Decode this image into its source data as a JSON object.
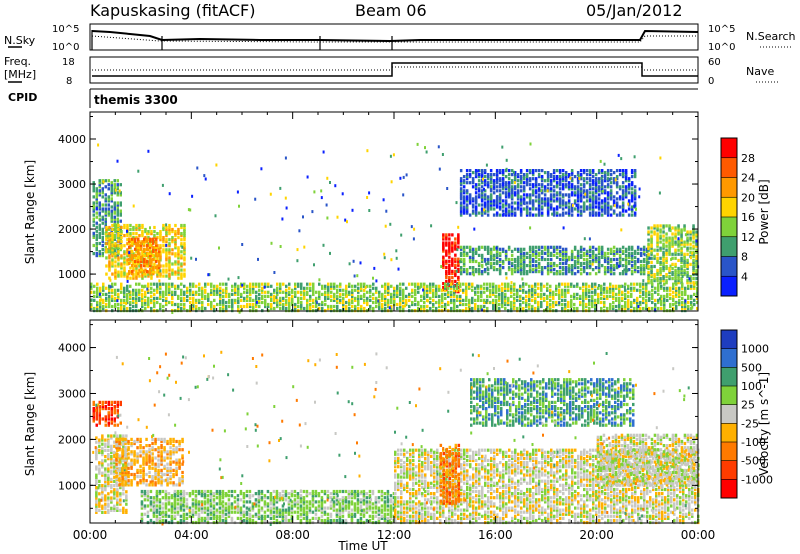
{
  "header": {
    "station": "Kapuskasing (fitACF)",
    "beam": "Beam 06",
    "date": "05/Jan/2012"
  },
  "strip_panels": {
    "nsky": {
      "label": "N.Sky",
      "ticks": [
        "10^5",
        "10^0"
      ],
      "right_label": "N.Search",
      "right_ticks": [
        "10^5",
        "10^0"
      ]
    },
    "freq": {
      "label_1": "Freq.",
      "label_2": "[MHz]",
      "ticks": [
        "18",
        "8"
      ],
      "right_label": "Nave",
      "right_ticks": [
        "60",
        "0"
      ]
    },
    "cpid": {
      "label": "CPID",
      "value": "themis 3300"
    }
  },
  "chart_data": [
    {
      "type": "heatmap",
      "panel": "power",
      "title": "",
      "xlabel": "",
      "ylabel": "Slant Range [km]",
      "xlim": [
        "00:00",
        "24:00"
      ],
      "ylim": [
        180,
        4600
      ],
      "y_ticks": [
        1000,
        2000,
        3000,
        4000
      ],
      "grid": false,
      "colorbar": {
        "label": "Power [dB]",
        "ticks": [
          "28",
          "24",
          "20",
          "16",
          "12",
          "8",
          "4"
        ],
        "colors": [
          "#ff0000",
          "#ff5a00",
          "#ff9900",
          "#ffd400",
          "#7fd23a",
          "#3f9f6e",
          "#2a55c8",
          "#0a20ff"
        ]
      },
      "regions": [
        {
          "t0": 0.1,
          "t1": 1.2,
          "r0": 1400,
          "r1": 3100,
          "level": 2
        },
        {
          "t0": 0.6,
          "t1": 3.7,
          "r0": 900,
          "r1": 2100,
          "level": 4
        },
        {
          "t0": 1.5,
          "t1": 2.8,
          "r0": 1000,
          "r1": 1800,
          "level": 5
        },
        {
          "t0": 13.9,
          "t1": 14.6,
          "r0": 600,
          "r1": 1900,
          "level": 7
        },
        {
          "t0": 14.6,
          "t1": 22.0,
          "r0": 1000,
          "r1": 1600,
          "level": 2
        },
        {
          "t0": 14.6,
          "t1": 21.5,
          "r0": 2300,
          "r1": 3300,
          "level": 1
        },
        {
          "t0": 22.0,
          "t1": 24.0,
          "r0": 800,
          "r1": 2100,
          "level": 3
        },
        {
          "t0": 0.0,
          "t1": 24.0,
          "r0": 180,
          "r1": 800,
          "level": 3
        }
      ]
    },
    {
      "type": "heatmap",
      "panel": "velocity",
      "title": "",
      "xlabel": "Time UT",
      "ylabel": "Slant Range [km]",
      "xlim": [
        "00:00",
        "24:00"
      ],
      "ylim": [
        180,
        4600
      ],
      "x_ticks": [
        "00:00",
        "04:00",
        "08:00",
        "12:00",
        "16:00",
        "20:00",
        "00:00"
      ],
      "y_ticks": [
        1000,
        2000,
        3000,
        4000
      ],
      "grid": false,
      "colorbar": {
        "label": "Velocity [m s^-1]",
        "ticks": [
          "1000",
          "500",
          "100",
          "25",
          "-25",
          "-100",
          "-500",
          "-1000"
        ],
        "colors": [
          "#1e3dbf",
          "#2f6fd0",
          "#3f9f6e",
          "#7fd23a",
          "#c8c8c4",
          "#ffb000",
          "#ff7a00",
          "#ff3c00",
          "#ff0000"
        ]
      },
      "regions": [
        {
          "t0": 0.1,
          "t1": 1.2,
          "r0": 2300,
          "r1": 2800,
          "level": 7
        },
        {
          "t0": 0.2,
          "t1": 1.5,
          "r0": 400,
          "r1": 2100,
          "level": 4
        },
        {
          "t0": 1.0,
          "t1": 3.7,
          "r0": 1000,
          "r1": 2000,
          "level": 5
        },
        {
          "t0": 2.0,
          "t1": 12.0,
          "r0": 180,
          "r1": 900,
          "level": 3
        },
        {
          "t0": 12.0,
          "t1": 24.0,
          "r0": 180,
          "r1": 1800,
          "level": 4
        },
        {
          "t0": 13.8,
          "t1": 14.6,
          "r0": 600,
          "r1": 1900,
          "level": 6
        },
        {
          "t0": 15.0,
          "t1": 21.5,
          "r0": 2300,
          "r1": 3300,
          "level": 2
        },
        {
          "t0": 20.0,
          "t1": 24.0,
          "r0": 1000,
          "r1": 2100,
          "level": 4
        }
      ]
    }
  ]
}
